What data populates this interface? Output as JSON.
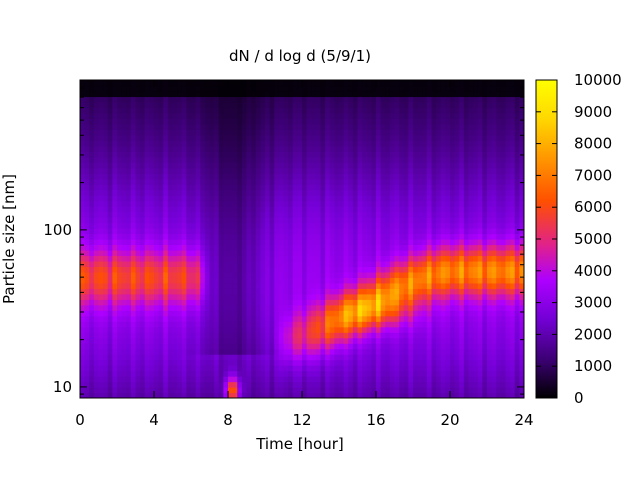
{
  "chart_data": {
    "type": "heatmap",
    "title": "dN / d log d (5/9/1)",
    "xlabel": "Time [hour]",
    "ylabel": "Particle size [nm]",
    "x_range": [
      0,
      24
    ],
    "x_ticks": [
      0,
      4,
      8,
      12,
      16,
      20,
      24
    ],
    "y_scale": "log",
    "y_range": [
      8.5,
      900
    ],
    "y_ticks": [
      10,
      100
    ],
    "colorbar": {
      "range": [
        0,
        10000
      ],
      "ticks": [
        0,
        1000,
        2000,
        3000,
        4000,
        5000,
        6000,
        7000,
        8000,
        9000,
        10000
      ],
      "colormap": [
        "#000000",
        "#3b0072",
        "#7400d6",
        "#ad00ff",
        "#e0218c",
        "#ff5000",
        "#ff9500",
        "#ffd800",
        "#ffff00"
      ]
    },
    "features": [
      {
        "description_hours": [
          0,
          6.8
        ],
        "size_nm": 50,
        "level": 5500
      },
      {
        "description_hours": [
          8.0,
          8.5
        ],
        "size_nm": 10,
        "level": 6500
      },
      {
        "description_hours": [
          10.5,
          24
        ],
        "size_nm_start": 20,
        "size_nm_end": 55,
        "peak_hour": 16,
        "peak_level": 8000
      }
    ]
  }
}
